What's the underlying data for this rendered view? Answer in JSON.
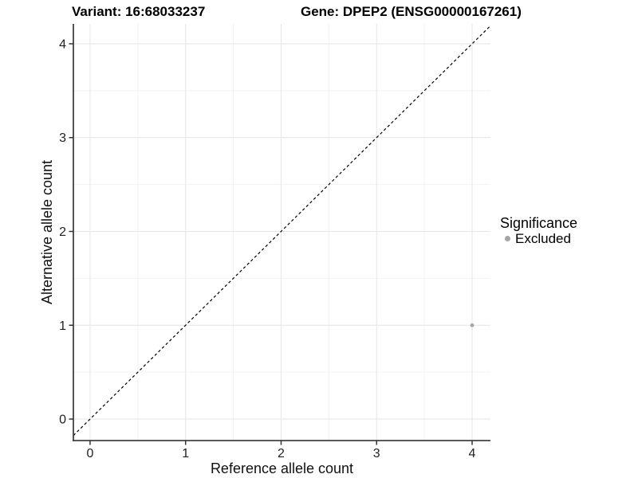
{
  "header": {
    "title_left": "Variant: 16:68033237",
    "title_right": "Gene: DPEP2 (ENSG00000167261)"
  },
  "chart_data": {
    "type": "scatter",
    "xlabel": "Reference allele count",
    "ylabel": "Alternative allele count",
    "xlim": [
      -0.175,
      4.192
    ],
    "ylim": [
      -0.229,
      4.212
    ],
    "x_ticks": [
      0,
      1,
      2,
      3,
      4
    ],
    "y_ticks": [
      0,
      1,
      2,
      3,
      4
    ],
    "x_minor_ticks": [
      0.5,
      1.5,
      2.5,
      3.5
    ],
    "y_minor_ticks": [
      0.5,
      1.5,
      2.5,
      3.5
    ],
    "grid": "major and minor gridlines on white panel",
    "reference_line": {
      "type": "identity y=x",
      "style": "dashed",
      "color": "#000000"
    },
    "series": [
      {
        "name": "Excluded",
        "color": "#a6a6a6",
        "points": [
          {
            "x": 4,
            "y": 1
          }
        ]
      }
    ],
    "legend": {
      "title": "Significance",
      "position": "right",
      "entries": [
        {
          "label": "Excluded",
          "color": "#a6a6a6"
        }
      ]
    },
    "colors": {
      "background": "#ffffff",
      "grid_major": "#e7e7e7",
      "grid_minor": "#f2f2f2",
      "axis_line": "#424242",
      "tick_mark": "#333333",
      "tick_label": "#1f1f1f"
    }
  }
}
